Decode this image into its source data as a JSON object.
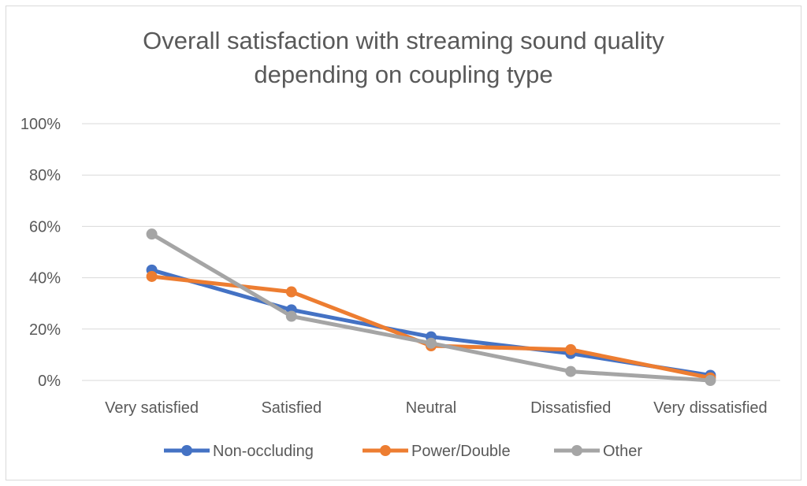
{
  "chart_data": {
    "type": "line",
    "title_line1": "Overall satisfaction with streaming sound quality",
    "title_line2": "depending on coupling type",
    "categories": [
      "Very satisfied",
      "Satisfied",
      "Neutral",
      "Dissatisfied",
      "Very dissatisfied"
    ],
    "yticks": [
      "0%",
      "20%",
      "40%",
      "60%",
      "80%",
      "100%"
    ],
    "ylim": [
      0,
      100
    ],
    "grid": true,
    "legend_position": "bottom",
    "series": [
      {
        "name": "Non-occluding",
        "color": "#4472c4",
        "values": [
          43,
          27.5,
          17,
          10.5,
          2
        ]
      },
      {
        "name": "Power/Double",
        "color": "#ed7d31",
        "values": [
          40.5,
          34.5,
          13.5,
          12,
          1
        ]
      },
      {
        "name": "Other",
        "color": "#a5a5a5",
        "values": [
          57,
          25,
          14.5,
          3.5,
          0
        ]
      }
    ]
  }
}
